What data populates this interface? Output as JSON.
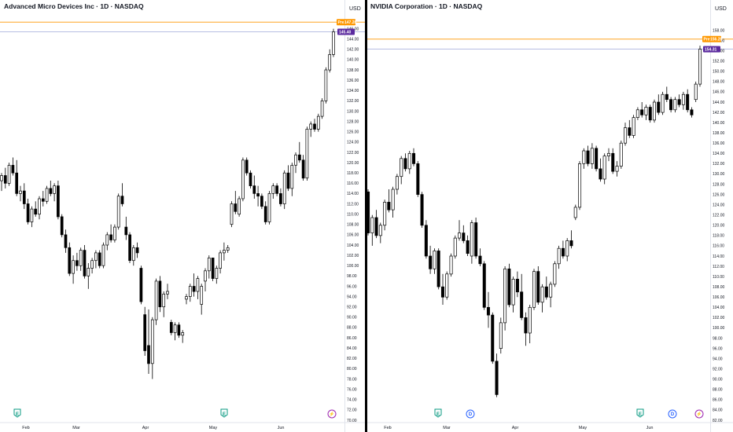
{
  "panels": [
    {
      "title": "Advanced Micro Devices Inc · 1D · NASDAQ",
      "currency": "USD",
      "price_tag": "145.40",
      "alt_tag_label": "Pre",
      "alt_tag_value": "147.28",
      "event_markers": [
        "E",
        "E",
        "⚡"
      ],
      "x_labels": [
        "Feb",
        "Mar",
        "Apr",
        "May",
        "Jun"
      ],
      "y_ticks": [
        "146.00",
        "144.00",
        "142.00",
        "140.00",
        "138.00",
        "136.00",
        "134.00",
        "132.00",
        "130.00",
        "128.00",
        "126.00",
        "124.00",
        "122.00",
        "120.00",
        "118.00",
        "116.00",
        "114.00",
        "112.00",
        "110.00",
        "108.00",
        "106.00",
        "104.00",
        "102.00",
        "100.00",
        "98.00",
        "96.00",
        "94.00",
        "92.00",
        "90.00",
        "88.00",
        "86.00",
        "84.00",
        "82.00",
        "80.00",
        "78.00",
        "76.00",
        "74.00",
        "72.00",
        "70.00"
      ]
    },
    {
      "title": "NVIDIA Corporation · 1D · NASDAQ",
      "currency": "USD",
      "price_tag": "154.31",
      "alt_tag_label": "Pre",
      "alt_tag_value": "156.28",
      "event_markers": [
        "E",
        "D",
        "E",
        "D",
        "⚡"
      ],
      "x_labels": [
        "Feb",
        "Mar",
        "Apr",
        "May",
        "Jun"
      ],
      "y_ticks": [
        "158.00",
        "156.00",
        "154.00",
        "152.00",
        "150.00",
        "148.00",
        "146.00",
        "144.00",
        "142.00",
        "140.00",
        "138.00",
        "136.00",
        "134.00",
        "132.00",
        "130.00",
        "128.00",
        "126.00",
        "124.00",
        "122.00",
        "120.00",
        "118.00",
        "116.00",
        "114.00",
        "112.00",
        "110.00",
        "108.00",
        "106.00",
        "104.00",
        "102.00",
        "100.00",
        "98.00",
        "96.00",
        "94.00",
        "92.00",
        "90.00",
        "88.00",
        "86.00",
        "84.00",
        "82.00"
      ]
    }
  ],
  "colors": {
    "up_fill": "#ffffff",
    "down_fill": "#000000",
    "outline": "#000000",
    "pre_line": "#ff9800",
    "pre_tag": "#ff9800",
    "last_line": "#9fa8da",
    "last_tag": "#5b2a9e",
    "earnings": "#089981",
    "dividend": "#2962ff",
    "split": "#9c27b0"
  },
  "chart_data": [
    {
      "type": "candlestick",
      "title": "Advanced Micro Devices Inc · 1D · NASDAQ",
      "ylabel": "USD",
      "ylim": [
        70,
        147
      ],
      "x_labels": [
        "Feb",
        "Mar",
        "Apr",
        "May",
        "Jun"
      ],
      "last_price": 145.4,
      "premarket_price": 147.28,
      "ohlc": [
        [
          116.5,
          118.0,
          114.5,
          117.5
        ],
        [
          117.5,
          119.0,
          115.0,
          116.0
        ],
        [
          116.0,
          120.0,
          115.5,
          119.5
        ],
        [
          119.5,
          121.0,
          117.5,
          118.0
        ],
        [
          118.0,
          120.5,
          113.5,
          114.0
        ],
        [
          114.0,
          115.5,
          112.5,
          114.5
        ],
        [
          114.5,
          116.0,
          111.0,
          112.0
        ],
        [
          112.0,
          113.0,
          108.0,
          108.5
        ],
        [
          108.5,
          111.5,
          107.5,
          111.0
        ],
        [
          111.0,
          112.5,
          109.5,
          110.0
        ],
        [
          110.0,
          113.5,
          109.0,
          113.0
        ],
        [
          113.0,
          114.5,
          111.5,
          112.5
        ],
        [
          112.5,
          115.5,
          112.0,
          115.0
        ],
        [
          115.0,
          116.5,
          113.5,
          114.0
        ],
        [
          114.0,
          116.0,
          112.5,
          115.5
        ],
        [
          115.5,
          116.5,
          109.0,
          109.5
        ],
        [
          109.5,
          110.0,
          105.5,
          106.0
        ],
        [
          106.0,
          107.0,
          102.5,
          103.5
        ],
        [
          103.5,
          104.5,
          98.0,
          98.5
        ],
        [
          98.5,
          102.0,
          96.5,
          101.0
        ],
        [
          101.0,
          102.5,
          99.0,
          100.0
        ],
        [
          100.0,
          103.5,
          99.0,
          103.0
        ],
        [
          103.0,
          104.0,
          97.5,
          98.0
        ],
        [
          98.0,
          100.5,
          95.5,
          99.5
        ],
        [
          99.5,
          101.5,
          98.5,
          101.0
        ],
        [
          101.0,
          103.0,
          99.5,
          102.5
        ],
        [
          102.5,
          103.0,
          99.5,
          100.0
        ],
        [
          100.0,
          104.5,
          99.5,
          104.0
        ],
        [
          104.0,
          106.5,
          103.0,
          106.0
        ],
        [
          106.0,
          108.0,
          104.5,
          105.0
        ],
        [
          105.0,
          108.0,
          104.5,
          107.5
        ],
        [
          107.5,
          114.0,
          107.0,
          113.5
        ],
        [
          113.5,
          116.0,
          111.5,
          112.0
        ],
        [
          107.5,
          109.5,
          105.0,
          106.0
        ],
        [
          106.0,
          106.5,
          100.5,
          101.0
        ],
        [
          101.0,
          104.0,
          100.0,
          103.5
        ],
        [
          103.5,
          104.5,
          101.5,
          102.5
        ],
        [
          99.5,
          100.0,
          92.5,
          93.0
        ],
        [
          90.5,
          92.0,
          82.5,
          83.5
        ],
        [
          84.5,
          91.5,
          79.0,
          81.0
        ],
        [
          81.0,
          90.0,
          78.0,
          89.5
        ],
        [
          89.5,
          97.5,
          88.5,
          97.0
        ],
        [
          97.0,
          98.0,
          91.0,
          92.0
        ],
        [
          92.0,
          95.0,
          90.0,
          94.5
        ],
        [
          94.5,
          96.5,
          93.5,
          95.0
        ],
        [
          89.0,
          89.5,
          86.5,
          87.0
        ],
        [
          87.0,
          89.0,
          85.5,
          88.5
        ],
        [
          88.5,
          89.0,
          86.0,
          86.5
        ],
        [
          86.5,
          87.5,
          85.0,
          87.0
        ],
        [
          93.5,
          94.5,
          92.5,
          94.0
        ],
        [
          94.0,
          96.5,
          93.0,
          96.0
        ],
        [
          96.0,
          98.5,
          94.0,
          95.0
        ],
        [
          95.0,
          98.0,
          93.5,
          97.5
        ],
        [
          92.5,
          96.5,
          90.5,
          96.0
        ],
        [
          97.0,
          99.5,
          95.0,
          99.0
        ],
        [
          99.0,
          102.0,
          97.5,
          101.5
        ],
        [
          101.5,
          101.5,
          97.0,
          97.5
        ],
        [
          97.5,
          100.0,
          96.5,
          99.5
        ],
        [
          99.5,
          103.0,
          98.5,
          102.5
        ],
        [
          102.5,
          104.5,
          101.0,
          103.0
        ],
        [
          103.0,
          104.0,
          102.5,
          103.5
        ],
        [
          108.0,
          112.5,
          107.5,
          112.0
        ],
        [
          112.0,
          114.5,
          110.0,
          110.5
        ],
        [
          110.0,
          113.5,
          109.5,
          113.0
        ],
        [
          113.0,
          121.0,
          112.5,
          120.5
        ],
        [
          120.5,
          121.0,
          117.5,
          118.0
        ],
        [
          118.0,
          118.5,
          115.0,
          115.5
        ],
        [
          115.5,
          117.5,
          113.0,
          114.0
        ],
        [
          114.0,
          115.5,
          111.5,
          113.5
        ],
        [
          113.5,
          114.0,
          111.0,
          111.5
        ],
        [
          111.5,
          112.5,
          108.0,
          108.5
        ],
        [
          108.5,
          114.5,
          108.0,
          114.0
        ],
        [
          114.0,
          116.0,
          113.0,
          115.5
        ],
        [
          115.5,
          116.0,
          113.5,
          114.0
        ],
        [
          114.0,
          115.0,
          111.5,
          112.0
        ],
        [
          112.0,
          118.5,
          111.0,
          118.0
        ],
        [
          118.0,
          119.5,
          114.5,
          115.0
        ],
        [
          115.0,
          120.0,
          113.5,
          119.5
        ],
        [
          119.5,
          122.0,
          118.0,
          121.5
        ],
        [
          121.5,
          124.0,
          120.0,
          120.5
        ],
        [
          120.5,
          121.5,
          116.5,
          117.0
        ],
        [
          117.0,
          127.0,
          116.5,
          126.5
        ],
        [
          126.5,
          128.0,
          125.0,
          127.5
        ],
        [
          127.5,
          128.5,
          126.0,
          126.5
        ],
        [
          126.5,
          129.5,
          126.0,
          129.0
        ],
        [
          129.0,
          132.5,
          128.5,
          132.0
        ],
        [
          132.0,
          138.5,
          131.5,
          138.0
        ],
        [
          138.0,
          142.0,
          137.5,
          141.0
        ],
        [
          141.0,
          146.0,
          140.5,
          145.4
        ]
      ]
    },
    {
      "type": "candlestick",
      "title": "NVIDIA Corporation · 1D · NASDAQ",
      "ylabel": "USD",
      "ylim": [
        82,
        159
      ],
      "x_labels": [
        "Feb",
        "Mar",
        "Apr",
        "May",
        "Jun"
      ],
      "last_price": 154.31,
      "premarket_price": 156.28,
      "ohlc": [
        [
          126.5,
          127.0,
          118.0,
          118.5
        ],
        [
          118.5,
          122.0,
          116.0,
          121.5
        ],
        [
          121.5,
          123.0,
          117.5,
          118.0
        ],
        [
          118.0,
          120.5,
          116.5,
          120.0
        ],
        [
          120.0,
          125.0,
          119.0,
          124.5
        ],
        [
          124.5,
          127.0,
          122.5,
          123.0
        ],
        [
          123.0,
          127.5,
          121.5,
          127.0
        ],
        [
          127.0,
          130.0,
          126.0,
          129.5
        ],
        [
          129.5,
          133.5,
          128.0,
          133.0
        ],
        [
          133.0,
          134.0,
          130.5,
          131.0
        ],
        [
          131.0,
          134.5,
          130.0,
          134.0
        ],
        [
          134.0,
          135.0,
          131.5,
          132.0
        ],
        [
          132.0,
          132.5,
          125.5,
          126.0
        ],
        [
          126.0,
          126.5,
          119.5,
          120.0
        ],
        [
          120.0,
          121.0,
          113.5,
          114.0
        ],
        [
          114.0,
          116.0,
          110.5,
          111.5
        ],
        [
          111.5,
          115.5,
          110.5,
          115.0
        ],
        [
          115.0,
          115.5,
          107.5,
          108.0
        ],
        [
          108.0,
          110.5,
          104.5,
          106.0
        ],
        [
          106.0,
          111.0,
          105.5,
          110.5
        ],
        [
          110.5,
          114.5,
          110.0,
          114.0
        ],
        [
          114.0,
          118.0,
          113.5,
          117.5
        ],
        [
          117.5,
          121.0,
          117.0,
          118.5
        ],
        [
          118.5,
          120.0,
          116.5,
          117.0
        ],
        [
          117.0,
          118.0,
          114.0,
          114.5
        ],
        [
          114.0,
          121.0,
          112.5,
          120.5
        ],
        [
          120.5,
          121.5,
          113.5,
          114.0
        ],
        [
          114.0,
          115.5,
          112.0,
          112.5
        ],
        [
          112.5,
          113.0,
          103.5,
          104.0
        ],
        [
          104.0,
          107.0,
          100.0,
          102.5
        ],
        [
          102.5,
          103.0,
          93.0,
          93.5
        ],
        [
          93.5,
          95.0,
          86.5,
          87.0
        ],
        [
          96.0,
          102.0,
          95.0,
          101.0
        ],
        [
          101.0,
          112.0,
          99.5,
          111.5
        ],
        [
          111.5,
          112.5,
          104.0,
          104.5
        ],
        [
          104.5,
          110.0,
          103.0,
          109.5
        ],
        [
          109.5,
          111.0,
          106.0,
          107.0
        ],
        [
          107.0,
          110.5,
          101.5,
          102.0
        ],
        [
          102.0,
          103.0,
          96.5,
          99.0
        ],
        [
          99.0,
          104.5,
          97.0,
          104.0
        ],
        [
          104.0,
          111.5,
          103.5,
          111.0
        ],
        [
          111.0,
          112.0,
          104.5,
          105.0
        ],
        [
          105.0,
          108.5,
          103.0,
          108.0
        ],
        [
          108.0,
          110.0,
          105.5,
          106.0
        ],
        [
          106.0,
          109.0,
          104.0,
          108.5
        ],
        [
          108.5,
          113.0,
          108.0,
          112.5
        ],
        [
          112.5,
          116.0,
          111.5,
          115.5
        ],
        [
          115.5,
          117.0,
          113.5,
          114.0
        ],
        [
          114.0,
          117.5,
          113.0,
          117.0
        ],
        [
          117.0,
          119.0,
          115.5,
          116.0
        ],
        [
          121.5,
          124.0,
          121.0,
          123.5
        ],
        [
          123.5,
          132.5,
          123.0,
          132.0
        ],
        [
          132.0,
          135.0,
          131.0,
          134.5
        ],
        [
          134.5,
          135.5,
          131.5,
          132.0
        ],
        [
          132.0,
          136.0,
          131.0,
          135.0
        ],
        [
          135.0,
          135.5,
          130.5,
          131.0
        ],
        [
          131.0,
          133.0,
          128.5,
          129.0
        ],
        [
          129.0,
          134.0,
          128.0,
          133.5
        ],
        [
          133.5,
          135.0,
          132.5,
          134.0
        ],
        [
          134.0,
          135.0,
          130.0,
          130.5
        ],
        [
          130.5,
          132.5,
          129.5,
          131.5
        ],
        [
          131.5,
          136.5,
          131.0,
          136.0
        ],
        [
          136.0,
          140.0,
          135.5,
          139.0
        ],
        [
          139.0,
          140.5,
          137.0,
          137.5
        ],
        [
          137.5,
          141.5,
          137.0,
          141.0
        ],
        [
          141.0,
          143.0,
          140.5,
          142.5
        ],
        [
          142.5,
          144.0,
          141.0,
          141.5
        ],
        [
          141.5,
          143.5,
          140.5,
          143.0
        ],
        [
          143.0,
          143.5,
          140.0,
          140.5
        ],
        [
          140.5,
          144.5,
          140.0,
          144.0
        ],
        [
          144.0,
          145.5,
          141.5,
          142.0
        ],
        [
          142.0,
          146.0,
          141.5,
          145.5
        ],
        [
          145.5,
          147.0,
          144.0,
          144.5
        ],
        [
          144.5,
          145.0,
          142.0,
          142.5
        ],
        [
          142.5,
          145.0,
          142.0,
          144.5
        ],
        [
          144.5,
          145.5,
          143.0,
          143.5
        ],
        [
          143.5,
          146.0,
          142.5,
          145.5
        ],
        [
          145.5,
          146.5,
          142.0,
          142.5
        ],
        [
          142.5,
          143.0,
          141.0,
          141.5
        ],
        [
          144.5,
          148.0,
          144.0,
          147.5
        ],
        [
          147.5,
          155.0,
          147.0,
          154.31
        ]
      ]
    }
  ]
}
